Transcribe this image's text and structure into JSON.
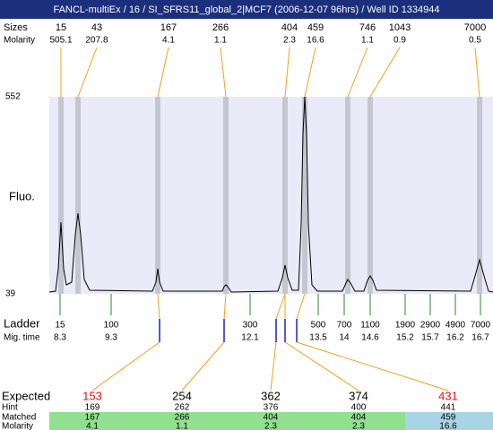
{
  "title": "FANCL-multiEx / 16 / SI_SFRS11_global_2|MCF7 (2006-12-07 96hrs) / Well ID 1334944",
  "top": {
    "size_label": "Sizes",
    "molarity_label": "Molarity",
    "sizes": [
      15,
      43,
      167,
      266,
      404,
      459,
      746,
      1043,
      7000
    ],
    "molarity": [
      505.1,
      207.8,
      4.1,
      1.1,
      2.3,
      16.6,
      1.1,
      0.9,
      0.5
    ]
  },
  "axis": {
    "label": "Fluo.",
    "ticks": [
      552,
      39
    ]
  },
  "ladder": {
    "label": "Ladder",
    "time_label": "Mig. time",
    "sizes": [
      15,
      100,
      300,
      500,
      700,
      1100,
      1900,
      2900,
      4900,
      7000
    ],
    "times": [
      8.3,
      9.3,
      12.1,
      13.5,
      14,
      14.6,
      15.2,
      15.7,
      16.2,
      16.7
    ]
  },
  "table": {
    "row_labels": [
      "Expected",
      "Hint",
      "Matched",
      "Molarity"
    ],
    "expected": [
      153,
      254,
      362,
      374,
      431
    ],
    "hint": [
      169,
      262,
      376,
      400,
      441
    ],
    "matched": [
      167,
      266,
      404,
      404,
      459
    ],
    "molarity": [
      4.1,
      1.1,
      2.3,
      2.3,
      16.6
    ]
  }
}
